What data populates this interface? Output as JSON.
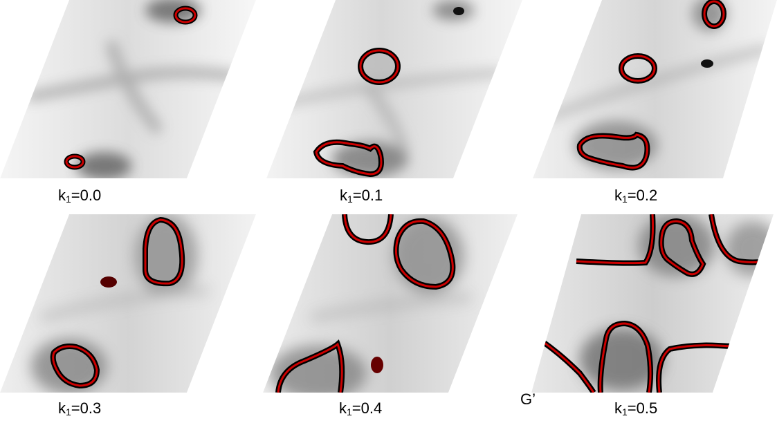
{
  "panels": [
    {
      "k_var": "k",
      "k_sub": "1",
      "k_value": "=0.0"
    },
    {
      "k_var": "k",
      "k_sub": "1",
      "k_value": "=0.1"
    },
    {
      "k_var": "k",
      "k_sub": "1",
      "k_value": "=0.2"
    },
    {
      "k_var": "k",
      "k_sub": "1",
      "k_value": "=0.3"
    },
    {
      "k_var": "k",
      "k_sub": "1",
      "k_value": "=0.4"
    },
    {
      "k_var": "k",
      "k_sub": "1",
      "k_value": "=0.5"
    }
  ],
  "extra_label": "G’",
  "colors": {
    "contour": "#cc0000",
    "outline": "#000000",
    "background_light": "#f2f2f2",
    "background_dark": "#8c8c8c"
  }
}
